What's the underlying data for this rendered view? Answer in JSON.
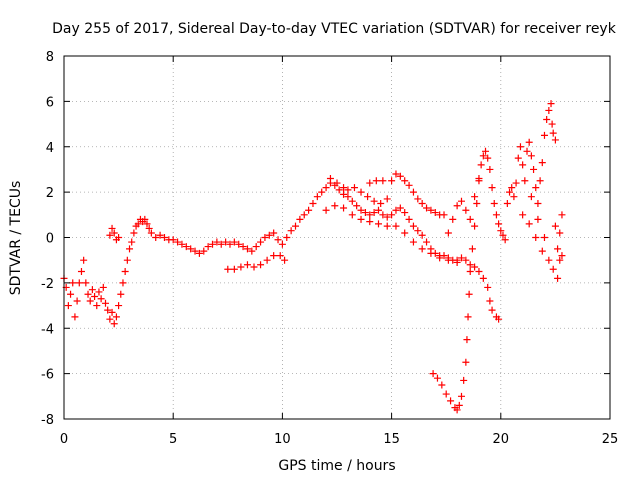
{
  "chart_data": {
    "type": "scatter",
    "title": "Day 255 of 2017, Sidereal Day-to-day VTEC variation (SDTVAR) for receiver reyk",
    "xlabel": "GPS time / hours",
    "ylabel": "SDTVAR / TECUs",
    "xlim": [
      0,
      25
    ],
    "ylim": [
      -8,
      8
    ],
    "x_ticks": [
      0,
      5,
      10,
      15,
      20,
      25
    ],
    "y_ticks": [
      -8,
      -6,
      -4,
      -2,
      0,
      2,
      4,
      6,
      8
    ],
    "x_tick_labels": [
      "0",
      "5",
      "10",
      "15",
      "20",
      "25"
    ],
    "y_tick_labels": [
      "-8",
      "-6",
      "-4",
      "-2",
      "0",
      "2",
      "4",
      "6",
      "8"
    ],
    "grid": true,
    "marker": "+",
    "series_color": "#ff0000",
    "series": [
      {
        "name": "main",
        "points": [
          [
            0.0,
            -1.8
          ],
          [
            0.1,
            -2.2
          ],
          [
            0.2,
            -3.0
          ],
          [
            0.3,
            -2.5
          ],
          [
            0.4,
            -2.0
          ],
          [
            0.5,
            -3.5
          ],
          [
            0.6,
            -2.8
          ],
          [
            0.7,
            -2.0
          ],
          [
            0.8,
            -1.5
          ],
          [
            0.9,
            -1.0
          ],
          [
            1.0,
            -2.0
          ],
          [
            1.1,
            -2.5
          ],
          [
            1.2,
            -2.8
          ],
          [
            1.3,
            -2.3
          ],
          [
            1.4,
            -2.6
          ],
          [
            1.5,
            -3.0
          ],
          [
            1.6,
            -2.4
          ],
          [
            1.7,
            -2.7
          ],
          [
            1.8,
            -2.2
          ],
          [
            1.9,
            -2.9
          ],
          [
            2.0,
            -3.2
          ],
          [
            2.1,
            -3.6
          ],
          [
            2.2,
            -3.3
          ],
          [
            2.3,
            -3.8
          ],
          [
            2.4,
            -3.5
          ],
          [
            2.5,
            -3.0
          ],
          [
            2.6,
            -2.5
          ],
          [
            2.7,
            -2.0
          ],
          [
            2.8,
            -1.5
          ],
          [
            2.9,
            -1.0
          ],
          [
            3.0,
            -0.5
          ],
          [
            3.1,
            -0.2
          ],
          [
            3.2,
            0.2
          ],
          [
            3.3,
            0.5
          ],
          [
            3.4,
            0.6
          ],
          [
            3.5,
            0.8
          ],
          [
            3.6,
            0.7
          ],
          [
            3.7,
            0.8
          ],
          [
            3.8,
            0.6
          ],
          [
            3.9,
            0.4
          ],
          [
            4.0,
            0.2
          ],
          [
            4.2,
            0.0
          ],
          [
            4.4,
            0.1
          ],
          [
            4.6,
            0.0
          ],
          [
            4.8,
            -0.1
          ],
          [
            5.0,
            -0.1
          ],
          [
            5.2,
            -0.2
          ],
          [
            5.4,
            -0.3
          ],
          [
            5.6,
            -0.4
          ],
          [
            5.8,
            -0.5
          ],
          [
            6.0,
            -0.6
          ],
          [
            6.2,
            -0.7
          ],
          [
            6.4,
            -0.6
          ],
          [
            6.6,
            -0.4
          ],
          [
            6.8,
            -0.3
          ],
          [
            7.0,
            -0.2
          ],
          [
            7.2,
            -0.3
          ],
          [
            7.4,
            -0.2
          ],
          [
            7.6,
            -0.3
          ],
          [
            7.8,
            -0.2
          ],
          [
            8.0,
            -0.3
          ],
          [
            8.2,
            -0.4
          ],
          [
            8.4,
            -0.5
          ],
          [
            8.6,
            -0.6
          ],
          [
            8.8,
            -0.4
          ],
          [
            9.0,
            -0.2
          ],
          [
            9.2,
            0.0
          ],
          [
            9.4,
            0.1
          ],
          [
            9.6,
            0.2
          ],
          [
            9.8,
            -0.1
          ],
          [
            10.0,
            -0.3
          ],
          [
            10.2,
            0.0
          ],
          [
            10.4,
            0.3
          ],
          [
            10.6,
            0.5
          ],
          [
            10.8,
            0.8
          ],
          [
            11.0,
            1.0
          ],
          [
            11.2,
            1.2
          ],
          [
            11.4,
            1.5
          ],
          [
            11.6,
            1.8
          ],
          [
            11.8,
            2.0
          ],
          [
            12.0,
            2.2
          ],
          [
            12.2,
            2.4
          ],
          [
            12.4,
            2.3
          ],
          [
            12.6,
            2.1
          ],
          [
            12.8,
            1.9
          ],
          [
            13.0,
            1.8
          ],
          [
            13.2,
            1.6
          ],
          [
            13.4,
            1.4
          ],
          [
            13.6,
            1.2
          ],
          [
            13.8,
            1.1
          ],
          [
            14.0,
            1.0
          ],
          [
            14.2,
            1.1
          ],
          [
            14.4,
            1.2
          ],
          [
            14.6,
            1.0
          ],
          [
            14.8,
            0.9
          ],
          [
            15.0,
            1.0
          ],
          [
            15.2,
            1.2
          ],
          [
            15.4,
            1.3
          ],
          [
            15.6,
            1.1
          ],
          [
            15.8,
            0.8
          ],
          [
            16.0,
            0.5
          ],
          [
            16.2,
            0.3
          ],
          [
            16.4,
            0.1
          ],
          [
            16.6,
            -0.2
          ],
          [
            16.8,
            -0.5
          ],
          [
            17.0,
            -0.7
          ],
          [
            17.2,
            -0.8
          ],
          [
            17.4,
            -0.8
          ],
          [
            17.6,
            -0.9
          ],
          [
            17.8,
            -1.0
          ],
          [
            18.0,
            -1.0
          ],
          [
            18.2,
            -0.9
          ],
          [
            18.4,
            -1.0
          ],
          [
            18.6,
            -1.2
          ],
          [
            18.8,
            -1.3
          ],
          [
            19.0,
            -1.5
          ],
          [
            19.2,
            -1.8
          ],
          [
            19.4,
            -2.2
          ],
          [
            19.5,
            -2.8
          ],
          [
            19.6,
            -3.2
          ],
          [
            19.8,
            -3.5
          ],
          [
            19.9,
            -3.6
          ]
        ]
      },
      {
        "name": "upper-trace",
        "points": [
          [
            2.1,
            0.1
          ],
          [
            2.2,
            0.4
          ],
          [
            2.3,
            0.2
          ],
          [
            2.4,
            -0.1
          ],
          [
            2.5,
            0.0
          ],
          [
            12.2,
            2.6
          ],
          [
            12.5,
            2.4
          ],
          [
            12.8,
            2.2
          ],
          [
            13.0,
            2.1
          ],
          [
            13.3,
            2.2
          ],
          [
            13.6,
            2.0
          ],
          [
            13.9,
            1.8
          ],
          [
            14.2,
            1.6
          ],
          [
            14.5,
            1.5
          ],
          [
            14.8,
            1.7
          ],
          [
            15.0,
            2.5
          ],
          [
            15.2,
            2.8
          ],
          [
            15.4,
            2.7
          ],
          [
            15.6,
            2.5
          ],
          [
            15.8,
            2.3
          ],
          [
            16.0,
            2.0
          ],
          [
            16.2,
            1.7
          ],
          [
            16.4,
            1.5
          ],
          [
            16.6,
            1.3
          ],
          [
            16.8,
            1.2
          ],
          [
            17.0,
            1.1
          ],
          [
            17.2,
            1.0
          ],
          [
            17.4,
            1.0
          ],
          [
            14.0,
            2.4
          ],
          [
            14.3,
            2.5
          ],
          [
            14.6,
            2.5
          ]
        ]
      },
      {
        "name": "lower-trace",
        "points": [
          [
            7.5,
            -1.4
          ],
          [
            7.8,
            -1.4
          ],
          [
            8.1,
            -1.3
          ],
          [
            8.4,
            -1.2
          ],
          [
            8.7,
            -1.3
          ],
          [
            9.0,
            -1.2
          ],
          [
            9.3,
            -1.0
          ],
          [
            9.6,
            -0.8
          ],
          [
            9.9,
            -0.8
          ],
          [
            10.1,
            -1.0
          ],
          [
            12.0,
            1.2
          ],
          [
            12.4,
            1.4
          ],
          [
            12.8,
            1.3
          ],
          [
            13.2,
            1.0
          ],
          [
            13.6,
            0.8
          ],
          [
            14.0,
            0.7
          ],
          [
            14.4,
            0.6
          ],
          [
            14.8,
            0.5
          ],
          [
            15.2,
            0.5
          ],
          [
            15.6,
            0.2
          ],
          [
            16.0,
            -0.2
          ],
          [
            16.4,
            -0.5
          ],
          [
            16.8,
            -0.7
          ],
          [
            17.2,
            -0.9
          ],
          [
            17.6,
            -1.0
          ],
          [
            18.0,
            -1.1
          ]
        ]
      },
      {
        "name": "dip",
        "points": [
          [
            16.9,
            -6.0
          ],
          [
            17.1,
            -6.2
          ],
          [
            17.3,
            -6.5
          ],
          [
            17.5,
            -6.9
          ],
          [
            17.7,
            -7.2
          ],
          [
            17.9,
            -7.5
          ],
          [
            18.0,
            -7.6
          ],
          [
            18.1,
            -7.4
          ],
          [
            18.2,
            -7.0
          ],
          [
            18.3,
            -6.3
          ],
          [
            18.4,
            -5.5
          ],
          [
            18.45,
            -4.5
          ],
          [
            18.5,
            -3.5
          ],
          [
            18.55,
            -2.5
          ],
          [
            18.6,
            -1.5
          ],
          [
            18.7,
            -0.5
          ],
          [
            18.8,
            0.5
          ],
          [
            18.9,
            1.5
          ],
          [
            19.0,
            2.5
          ],
          [
            19.1,
            3.2
          ],
          [
            19.2,
            3.6
          ],
          [
            19.3,
            3.8
          ],
          [
            19.4,
            3.5
          ],
          [
            19.5,
            3.0
          ],
          [
            19.6,
            2.2
          ],
          [
            19.7,
            1.5
          ],
          [
            19.8,
            1.0
          ],
          [
            19.9,
            0.6
          ],
          [
            20.0,
            0.3
          ],
          [
            20.1,
            0.1
          ],
          [
            20.2,
            -0.1
          ]
        ]
      },
      {
        "name": "late-spikes",
        "points": [
          [
            17.6,
            0.2
          ],
          [
            17.8,
            0.8
          ],
          [
            18.0,
            1.4
          ],
          [
            18.2,
            1.6
          ],
          [
            18.4,
            1.2
          ],
          [
            18.6,
            0.8
          ],
          [
            18.8,
            1.8
          ],
          [
            19.0,
            2.6
          ],
          [
            20.3,
            1.5
          ],
          [
            20.4,
            2.0
          ],
          [
            20.5,
            2.2
          ],
          [
            20.6,
            1.8
          ],
          [
            20.7,
            2.4
          ],
          [
            20.8,
            3.5
          ],
          [
            20.9,
            4.0
          ],
          [
            21.0,
            3.2
          ],
          [
            21.1,
            2.5
          ],
          [
            21.2,
            3.8
          ],
          [
            21.3,
            4.2
          ],
          [
            21.4,
            3.6
          ],
          [
            21.5,
            3.0
          ],
          [
            21.6,
            2.2
          ],
          [
            21.7,
            1.5
          ],
          [
            21.8,
            2.5
          ],
          [
            21.9,
            3.3
          ],
          [
            22.0,
            4.5
          ],
          [
            22.1,
            5.2
          ],
          [
            22.2,
            5.6
          ],
          [
            22.3,
            5.9
          ],
          [
            22.35,
            5.0
          ],
          [
            22.4,
            4.6
          ],
          [
            22.5,
            4.3
          ],
          [
            22.6,
            -0.5
          ],
          [
            22.7,
            -1.0
          ],
          [
            22.8,
            -0.8
          ],
          [
            22.5,
            0.5
          ],
          [
            22.7,
            0.2
          ],
          [
            22.8,
            1.0
          ],
          [
            21.0,
            1.0
          ],
          [
            21.3,
            0.6
          ],
          [
            21.6,
            0.0
          ],
          [
            21.9,
            -0.6
          ],
          [
            22.2,
            -1.0
          ],
          [
            22.4,
            -1.4
          ],
          [
            22.6,
            -1.8
          ],
          [
            21.4,
            1.8
          ],
          [
            21.7,
            0.8
          ],
          [
            22.0,
            0.0
          ]
        ]
      }
    ]
  }
}
